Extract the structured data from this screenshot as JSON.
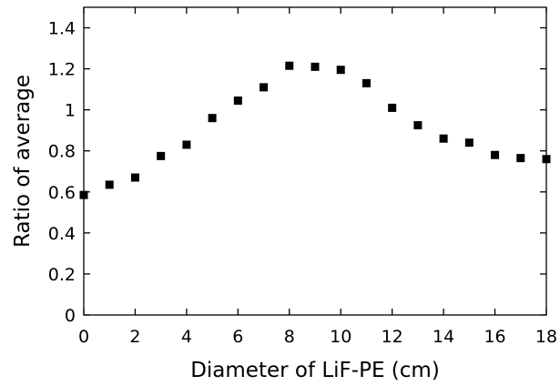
{
  "chart_data": {
    "type": "scatter",
    "title": "",
    "xlabel": "Diameter of LiF-PE (cm)",
    "ylabel": "Ratio of average",
    "xlim": [
      0,
      18
    ],
    "ylim": [
      0,
      1.5
    ],
    "x_ticks": [
      "0",
      "2",
      "4",
      "6",
      "8",
      "10",
      "12",
      "14",
      "16",
      "18"
    ],
    "y_ticks": [
      "0",
      "0.2",
      "0.4",
      "0.6",
      "0.8",
      "1",
      "1.2",
      "1.4"
    ],
    "grid": false,
    "legend": "none",
    "marker": "square",
    "color": "#000000",
    "series": [
      {
        "x": [
          0,
          1,
          2,
          3,
          4,
          5,
          6,
          7,
          8,
          9,
          10,
          11,
          12,
          13,
          14,
          15,
          16,
          17,
          18
        ],
        "y": [
          0.585,
          0.635,
          0.67,
          0.775,
          0.83,
          0.96,
          1.045,
          1.11,
          1.215,
          1.21,
          1.195,
          1.13,
          1.01,
          0.925,
          0.86,
          0.84,
          0.78,
          0.765,
          0.76
        ]
      }
    ]
  }
}
